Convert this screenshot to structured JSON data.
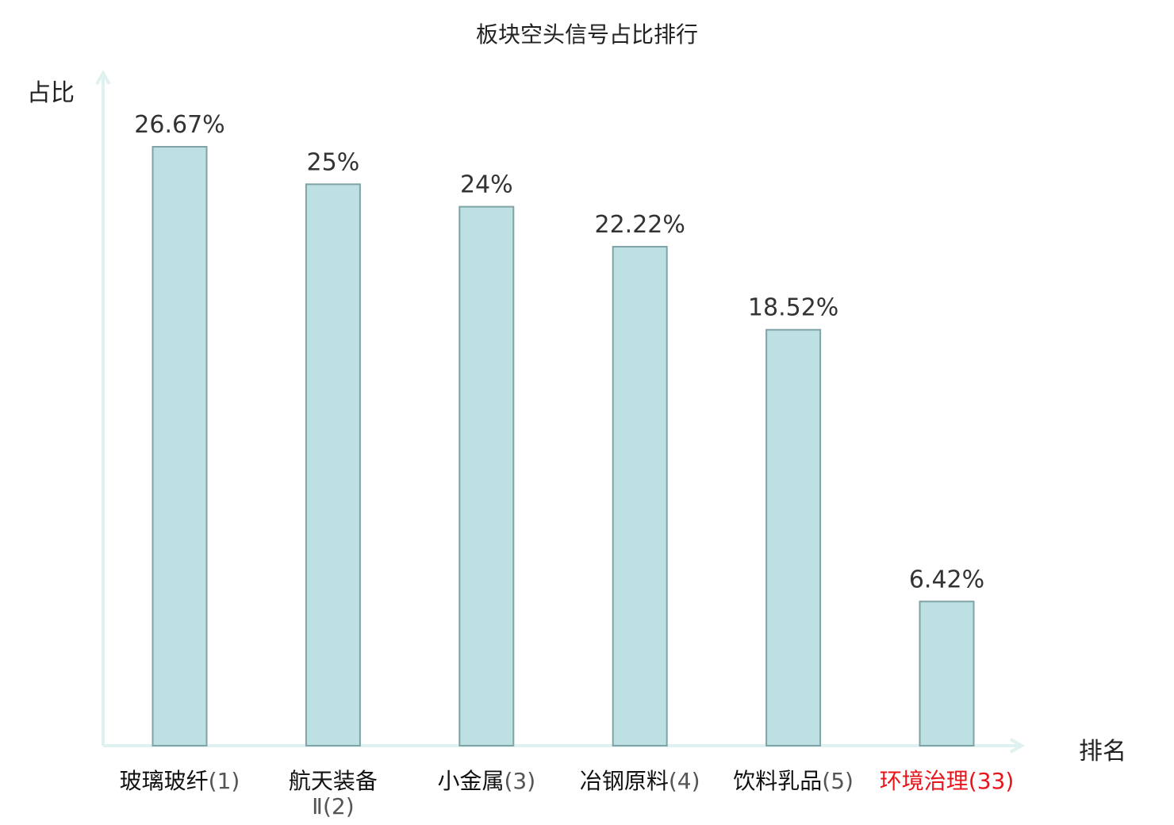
{
  "chart_data": {
    "type": "bar",
    "title": "板块空头信号占比排行",
    "ylabel": "占比",
    "xlabel": "排名",
    "categories": [
      {
        "name_lines": [
          "玻璃玻纤"
        ],
        "rank": "(1)"
      },
      {
        "name_lines": [
          "航天装备",
          "Ⅱ"
        ],
        "rank": "(2)"
      },
      {
        "name_lines": [
          "小金属"
        ],
        "rank": "(3)"
      },
      {
        "name_lines": [
          "冶钢原料"
        ],
        "rank": "(4)"
      },
      {
        "name_lines": [
          "饮料乳品"
        ],
        "rank": "(5)"
      },
      {
        "name_lines": [
          "环境治理"
        ],
        "rank": "(33)"
      }
    ],
    "values": [
      26.67,
      25,
      24,
      22.22,
      18.52,
      6.42
    ],
    "value_labels": [
      "26.67%",
      "25%",
      "24%",
      "22.22%",
      "18.52%",
      "6.42%"
    ],
    "highlight_index": 5,
    "ylim": [
      0,
      30
    ],
    "grid": false,
    "colors": {
      "bar_fill": "#bde0e2",
      "bar_stroke": "#7fa3a6",
      "axis": "#e0f2ef",
      "name_text": "#111111",
      "rank_text": "#555555",
      "highlight": "#e8141c"
    }
  }
}
